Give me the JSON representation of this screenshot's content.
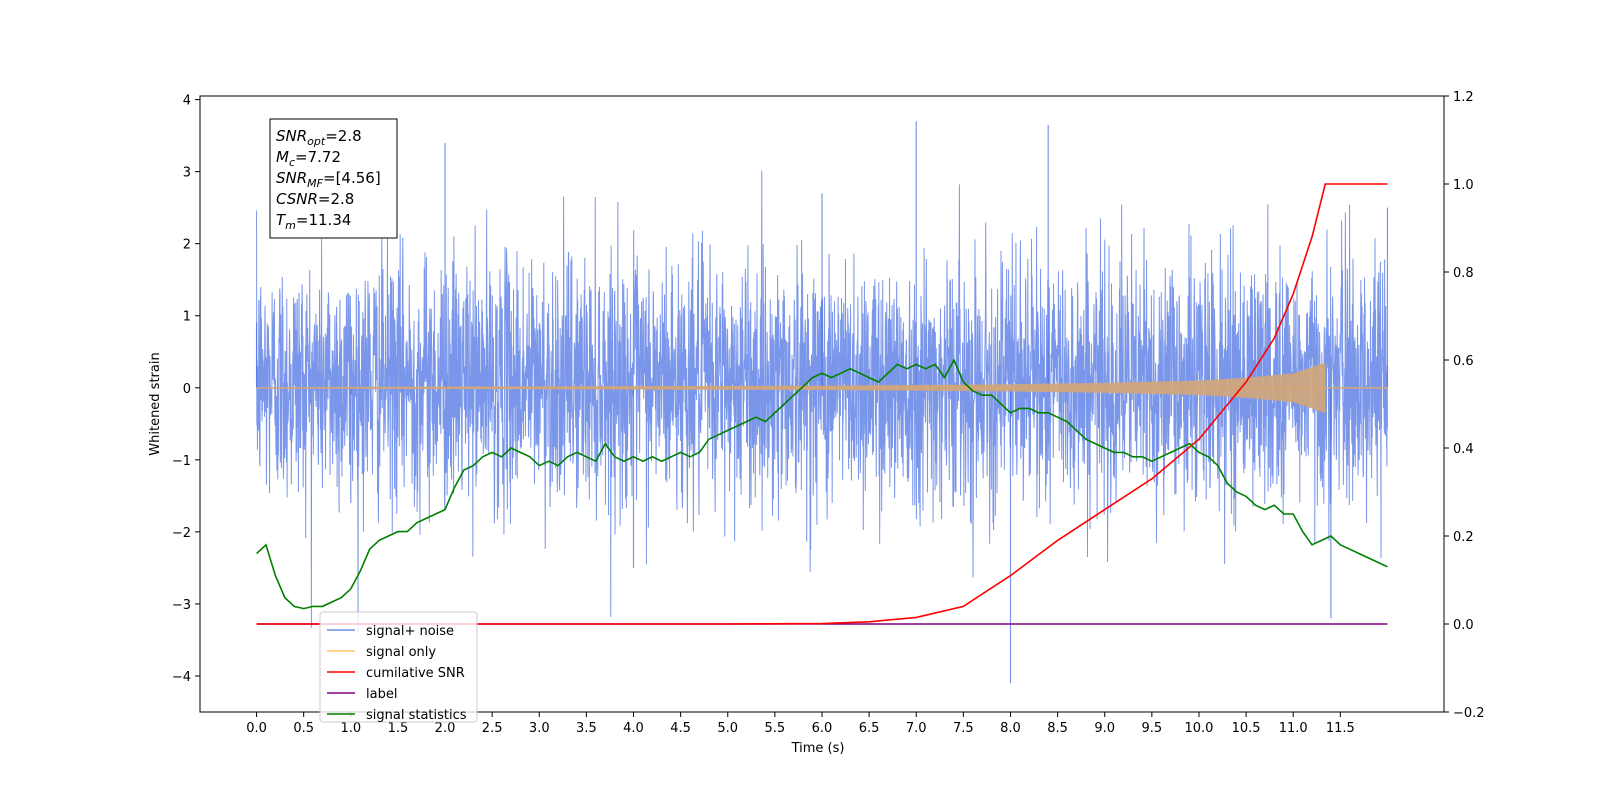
{
  "chart_data": {
    "type": "line",
    "title": "",
    "xlabel": "Time (s)",
    "ylabel": "Whitened strain",
    "xlim": [
      -0.6,
      12.6
    ],
    "ylim": [
      -4.5,
      4.05
    ],
    "y2lim": [
      -0.2,
      1.2
    ],
    "x_ticks": [
      "0.0",
      "0.5",
      "1.0",
      "1.5",
      "2.0",
      "2.5",
      "3.0",
      "3.5",
      "4.0",
      "4.5",
      "5.0",
      "5.5",
      "6.0",
      "6.5",
      "7.0",
      "7.5",
      "8.0",
      "8.5",
      "9.0",
      "9.5",
      "10.0",
      "10.5",
      "11.0",
      "11.5"
    ],
    "y_ticks": [
      "−4",
      "−3",
      "−2",
      "−1",
      "0",
      "1",
      "2",
      "3",
      "4"
    ],
    "y2_ticks": [
      "−0.2",
      "0.0",
      "0.2",
      "0.4",
      "0.6",
      "0.8",
      "1.0",
      "1.2"
    ],
    "y_tick_values": [
      -4,
      -3,
      -2,
      -1,
      0,
      1,
      2,
      3,
      4
    ],
    "y2_tick_values": [
      -0.2,
      0.0,
      0.2,
      0.4,
      0.6,
      0.8,
      1.0,
      1.2
    ],
    "x_tick_values": [
      0,
      0.5,
      1,
      1.5,
      2,
      2.5,
      3,
      3.5,
      4,
      4.5,
      5,
      5.5,
      6,
      6.5,
      7,
      7.5,
      8,
      8.5,
      9,
      9.5,
      10,
      10.5,
      11,
      11.5
    ],
    "grid": false,
    "legend_position": "lower-left",
    "annotation": [
      {
        "sym": "SNR",
        "sub": "opt",
        "val": "=2.8"
      },
      {
        "sym": "M",
        "sub": "c",
        "val": "=7.72"
      },
      {
        "sym": "SNR",
        "sub": "MF",
        "val": "=[4.56]"
      },
      {
        "sym": "CSNR",
        "sub": "",
        "val": "=2.8"
      },
      {
        "sym": "T",
        "sub": "m",
        "val": "=11.34"
      }
    ],
    "series": [
      {
        "name": "signal+ noise",
        "color": "#4169e1",
        "axis": "left",
        "description_points": [
          [
            0,
            0.9
          ],
          [
            1,
            -1.6
          ],
          [
            2,
            3.4
          ],
          [
            4,
            -2.5
          ],
          [
            6,
            2.7
          ],
          [
            7,
            3.7
          ],
          [
            8,
            -4.1
          ],
          [
            8.4,
            3.65
          ],
          [
            11.4,
            -3.2
          ],
          [
            12,
            2.5
          ]
        ]
      },
      {
        "name": "signal only",
        "color": "#ffa500",
        "axis": "left",
        "amplitude_x": [
          0,
          3,
          6,
          8,
          9,
          10,
          10.5,
          11,
          11.34
        ],
        "amplitude_y": [
          0.01,
          0.02,
          0.03,
          0.05,
          0.07,
          0.1,
          0.14,
          0.2,
          0.35
        ]
      },
      {
        "name": "cumilative SNR",
        "color": "#ff0000",
        "axis": "right",
        "x": [
          0,
          5,
          6,
          6.5,
          7,
          7.5,
          8,
          8.5,
          9,
          9.5,
          10,
          10.5,
          10.8,
          11,
          11.2,
          11.34,
          11.36,
          12
        ],
        "y": [
          0,
          0,
          0.001,
          0.005,
          0.015,
          0.04,
          0.11,
          0.19,
          0.26,
          0.33,
          0.42,
          0.55,
          0.65,
          0.75,
          0.88,
          1.0,
          1.0,
          1.0
        ]
      },
      {
        "name": "label",
        "color": "#800080",
        "axis": "right",
        "x": [
          0,
          12
        ],
        "y": [
          0,
          0
        ]
      },
      {
        "name": "signal statistics",
        "color": "#008000",
        "axis": "right",
        "x": [
          0,
          0.1,
          0.2,
          0.3,
          0.4,
          0.5,
          0.6,
          0.7,
          0.8,
          0.9,
          1.0,
          1.1,
          1.2,
          1.3,
          1.4,
          1.5,
          1.6,
          1.7,
          1.8,
          1.9,
          2.0,
          2.1,
          2.2,
          2.3,
          2.4,
          2.5,
          2.6,
          2.7,
          2.8,
          2.9,
          3.0,
          3.1,
          3.2,
          3.3,
          3.4,
          3.5,
          3.6,
          3.7,
          3.8,
          3.9,
          4.0,
          4.1,
          4.2,
          4.3,
          4.4,
          4.5,
          4.6,
          4.7,
          4.8,
          4.9,
          5.0,
          5.1,
          5.2,
          5.3,
          5.4,
          5.5,
          5.6,
          5.7,
          5.8,
          5.9,
          6.0,
          6.1,
          6.2,
          6.3,
          6.4,
          6.5,
          6.6,
          6.7,
          6.8,
          6.9,
          7.0,
          7.1,
          7.2,
          7.3,
          7.4,
          7.5,
          7.6,
          7.7,
          7.8,
          7.9,
          8.0,
          8.1,
          8.2,
          8.3,
          8.4,
          8.5,
          8.6,
          8.7,
          8.8,
          8.9,
          9.0,
          9.1,
          9.2,
          9.3,
          9.4,
          9.5,
          9.6,
          9.7,
          9.8,
          9.9,
          10.0,
          10.1,
          10.2,
          10.3,
          10.4,
          10.5,
          10.6,
          10.7,
          10.8,
          10.9,
          11.0,
          11.1,
          11.2,
          11.3,
          11.4,
          11.5,
          11.6,
          11.7,
          11.8,
          11.9,
          12.0
        ],
        "y": [
          0.16,
          0.18,
          0.11,
          0.06,
          0.04,
          0.035,
          0.04,
          0.04,
          0.05,
          0.06,
          0.08,
          0.12,
          0.17,
          0.19,
          0.2,
          0.21,
          0.21,
          0.23,
          0.24,
          0.25,
          0.26,
          0.31,
          0.35,
          0.36,
          0.38,
          0.39,
          0.38,
          0.4,
          0.39,
          0.38,
          0.36,
          0.37,
          0.36,
          0.38,
          0.39,
          0.38,
          0.37,
          0.41,
          0.38,
          0.37,
          0.38,
          0.37,
          0.38,
          0.37,
          0.38,
          0.39,
          0.38,
          0.39,
          0.42,
          0.43,
          0.44,
          0.45,
          0.46,
          0.47,
          0.46,
          0.48,
          0.5,
          0.52,
          0.54,
          0.56,
          0.57,
          0.56,
          0.57,
          0.58,
          0.57,
          0.56,
          0.55,
          0.57,
          0.59,
          0.58,
          0.59,
          0.58,
          0.59,
          0.56,
          0.6,
          0.55,
          0.53,
          0.52,
          0.52,
          0.5,
          0.48,
          0.49,
          0.49,
          0.48,
          0.48,
          0.47,
          0.46,
          0.44,
          0.42,
          0.41,
          0.4,
          0.39,
          0.39,
          0.38,
          0.38,
          0.37,
          0.38,
          0.39,
          0.4,
          0.41,
          0.39,
          0.38,
          0.36,
          0.32,
          0.3,
          0.29,
          0.27,
          0.26,
          0.27,
          0.25,
          0.25,
          0.21,
          0.18,
          0.19,
          0.2,
          0.18,
          0.17,
          0.16,
          0.15,
          0.14,
          0.13
        ]
      }
    ]
  }
}
